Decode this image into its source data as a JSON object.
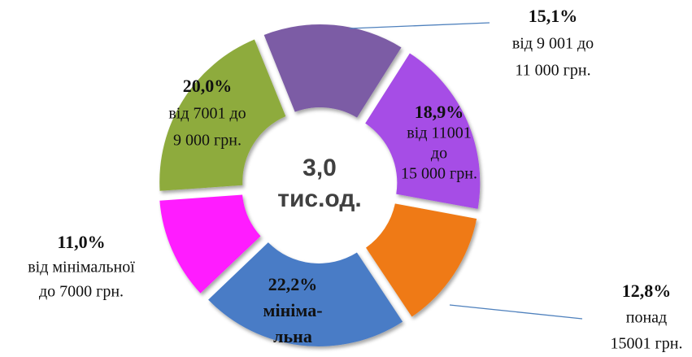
{
  "chart_data": {
    "type": "donut",
    "center_label": [
      "3,0",
      "тис.од."
    ],
    "categories": [
      [
        "від 9 001 до",
        "11 000 грн."
      ],
      [
        "від 11001",
        "до",
        "15 000 грн."
      ],
      [
        "понад",
        "15001 грн."
      ],
      [
        "мініма-",
        "льна"
      ],
      [
        "від мінімальної",
        "до 7000 грн."
      ],
      [
        "від 7001 до",
        "9 000 грн."
      ]
    ],
    "values": [
      15.1,
      18.9,
      12.8,
      22.2,
      11.0,
      20.0
    ],
    "value_labels": [
      "15,1%",
      "18,9%",
      "12,8%",
      "22,2%",
      "11,0%",
      "20,0%"
    ],
    "colors": [
      "#7b5ba5",
      "#a64ee6",
      "#ef7a12",
      "#4a7cc6",
      "#ff1fff",
      "#8eab3e"
    ]
  }
}
